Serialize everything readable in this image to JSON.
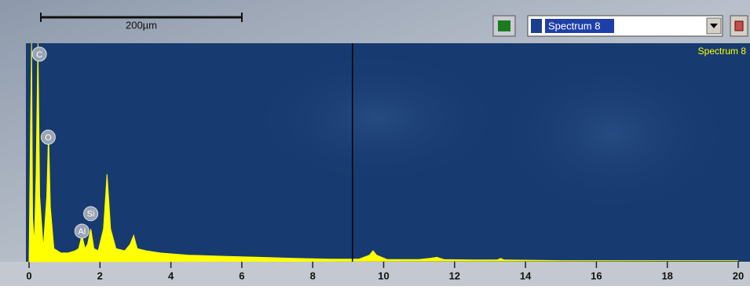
{
  "toolbar": {
    "scale_label": "200µm",
    "dropdown": "Spectrum 8"
  },
  "chart_data": {
    "type": "area",
    "series": [
      {
        "name": "Spectrum 8",
        "color": "#ffff00",
        "x": [
          0,
          0.04,
          0.07,
          0.1,
          0.15,
          0.2,
          0.25,
          0.3,
          0.4,
          0.5,
          0.55,
          0.6,
          0.7,
          0.9,
          1.1,
          1.3,
          1.4,
          1.49,
          1.58,
          1.65,
          1.74,
          1.83,
          1.95,
          2.1,
          2.2,
          2.3,
          2.45,
          2.7,
          2.85,
          2.95,
          3.05,
          3.3,
          3.7,
          4.5,
          5.5,
          6.5,
          7.5,
          8.5,
          9.3,
          9.6,
          9.7,
          9.8,
          10.1,
          11,
          11.3,
          11.5,
          11.7,
          12.5,
          13.2,
          13.3,
          13.4,
          15,
          17,
          20
        ],
        "values": [
          0,
          60,
          100,
          20,
          8,
          40,
          100,
          30,
          6,
          30,
          59,
          25,
          6,
          4,
          4,
          5,
          6,
          12,
          6,
          8,
          15,
          6,
          5,
          15,
          40,
          15,
          6,
          5,
          8,
          12,
          6,
          5,
          4,
          3,
          2.5,
          2,
          1.5,
          1.2,
          1.2,
          3,
          5,
          3,
          1,
          1,
          1.5,
          2,
          1,
          0.8,
          0.8,
          1.5,
          0.8,
          0.5,
          0.5,
          0.5
        ]
      }
    ],
    "annotations": [
      {
        "text": "C",
        "x": 0.29,
        "y": 95
      },
      {
        "text": "O",
        "x": 0.54,
        "y": 57
      },
      {
        "text": "Si",
        "x": 1.74,
        "y": 22
      },
      {
        "text": "Al",
        "x": 1.49,
        "y": 14
      }
    ],
    "cursor": 9.12,
    "xlim": [
      0,
      20
    ],
    "ylim": [
      0,
      100
    ],
    "xticks": [
      0,
      2,
      4,
      6,
      8,
      10,
      12,
      14,
      16,
      18,
      20
    ]
  }
}
